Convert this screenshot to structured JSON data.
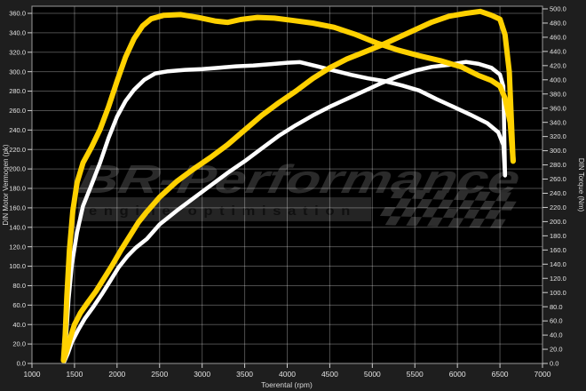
{
  "chart_data": {
    "type": "line",
    "title": "",
    "xlabel": "Toerental (rpm)",
    "ylabel_left": "DIN Motor Vermogen (pk)",
    "ylabel_right": "DIN Torque (Nm)",
    "x_axis": {
      "min": 1000,
      "max": 7000,
      "step": 500
    },
    "y_left_axis": {
      "min": 0,
      "max": 360,
      "step": 20,
      "decimals": 1
    },
    "y_right_axis": {
      "min": 0,
      "max": 500,
      "step": 20,
      "decimals": 1
    },
    "grid": true,
    "legend_position": "none",
    "colors": {
      "tuned": "#ffd100",
      "stock": "#ffffff",
      "plot_background": "#000000",
      "margin_background": "#1e1e1e",
      "gridline": "rgba(255,255,255,0.30)",
      "tick_text": "#e3e3e3",
      "watermark_text": "#2a2a2a",
      "watermark_band": "rgba(140,140,140,0.26)",
      "watermark_tagline": "#101010",
      "checker": "#2d2d2d"
    },
    "watermark": {
      "brand": "BR-Performance",
      "tagline": "engine optimisation"
    },
    "series": [
      {
        "name": "stock-torque",
        "axis": "right",
        "color": "#ffffff",
        "width": 4.5,
        "points": [
          [
            1380,
            4
          ],
          [
            1400,
            35
          ],
          [
            1430,
            90
          ],
          [
            1470,
            140
          ],
          [
            1530,
            185
          ],
          [
            1600,
            222
          ],
          [
            1700,
            252
          ],
          [
            1800,
            283
          ],
          [
            1900,
            318
          ],
          [
            2000,
            348
          ],
          [
            2100,
            370
          ],
          [
            2200,
            386
          ],
          [
            2320,
            400
          ],
          [
            2450,
            409
          ],
          [
            2600,
            412
          ],
          [
            2800,
            414
          ],
          [
            3000,
            415
          ],
          [
            3200,
            417
          ],
          [
            3400,
            419
          ],
          [
            3600,
            420
          ],
          [
            3800,
            422
          ],
          [
            4000,
            424
          ],
          [
            4150,
            425
          ],
          [
            4350,
            419
          ],
          [
            4550,
            413
          ],
          [
            4750,
            407
          ],
          [
            4950,
            402
          ],
          [
            5150,
            398
          ],
          [
            5350,
            392
          ],
          [
            5550,
            385
          ],
          [
            5750,
            373
          ],
          [
            5950,
            362
          ],
          [
            6150,
            351
          ],
          [
            6350,
            339
          ],
          [
            6480,
            326
          ],
          [
            6540,
            308
          ],
          [
            6560,
            265
          ]
        ]
      },
      {
        "name": "stock-power",
        "axis": "left",
        "color": "#ffffff",
        "width": 4.5,
        "points": [
          [
            1380,
            2
          ],
          [
            1420,
            10
          ],
          [
            1470,
            22
          ],
          [
            1540,
            34
          ],
          [
            1620,
            46
          ],
          [
            1720,
            58
          ],
          [
            1820,
            71
          ],
          [
            1920,
            85
          ],
          [
            2020,
            99
          ],
          [
            2120,
            110
          ],
          [
            2220,
            119
          ],
          [
            2350,
            128
          ],
          [
            2500,
            143
          ],
          [
            2700,
            157
          ],
          [
            2900,
            170
          ],
          [
            3100,
            183
          ],
          [
            3300,
            196
          ],
          [
            3500,
            208
          ],
          [
            3700,
            221
          ],
          [
            3900,
            234
          ],
          [
            4100,
            245
          ],
          [
            4300,
            255
          ],
          [
            4500,
            264
          ],
          [
            4700,
            272
          ],
          [
            4900,
            280
          ],
          [
            5100,
            288
          ],
          [
            5300,
            295
          ],
          [
            5500,
            301
          ],
          [
            5700,
            305
          ],
          [
            5900,
            307
          ],
          [
            6100,
            310
          ],
          [
            6250,
            308
          ],
          [
            6400,
            304
          ],
          [
            6500,
            297
          ],
          [
            6540,
            285
          ],
          [
            6560,
            194
          ]
        ]
      },
      {
        "name": "tuned-torque",
        "axis": "right",
        "color": "#ffd100",
        "width": 6,
        "points": [
          [
            1370,
            5
          ],
          [
            1390,
            40
          ],
          [
            1410,
            95
          ],
          [
            1440,
            160
          ],
          [
            1480,
            215
          ],
          [
            1530,
            255
          ],
          [
            1600,
            283
          ],
          [
            1700,
            305
          ],
          [
            1800,
            330
          ],
          [
            1900,
            362
          ],
          [
            2000,
            398
          ],
          [
            2100,
            432
          ],
          [
            2200,
            458
          ],
          [
            2300,
            476
          ],
          [
            2400,
            486
          ],
          [
            2550,
            491
          ],
          [
            2750,
            492
          ],
          [
            2950,
            488
          ],
          [
            3150,
            483
          ],
          [
            3300,
            481
          ],
          [
            3450,
            485
          ],
          [
            3650,
            488
          ],
          [
            3850,
            487
          ],
          [
            4050,
            484
          ],
          [
            4300,
            480
          ],
          [
            4550,
            474
          ],
          [
            4800,
            464
          ],
          [
            5050,
            452
          ],
          [
            5300,
            442
          ],
          [
            5550,
            434
          ],
          [
            5800,
            427
          ],
          [
            6050,
            418
          ],
          [
            6250,
            406
          ],
          [
            6400,
            399
          ],
          [
            6500,
            391
          ],
          [
            6560,
            374
          ],
          [
            6620,
            340
          ],
          [
            6655,
            286
          ]
        ]
      },
      {
        "name": "tuned-power",
        "axis": "left",
        "color": "#ffd100",
        "width": 6,
        "points": [
          [
            1370,
            3
          ],
          [
            1410,
            14
          ],
          [
            1450,
            26
          ],
          [
            1500,
            40
          ],
          [
            1570,
            52
          ],
          [
            1650,
            62
          ],
          [
            1750,
            74
          ],
          [
            1850,
            88
          ],
          [
            1950,
            102
          ],
          [
            2050,
            117
          ],
          [
            2150,
            131
          ],
          [
            2250,
            145
          ],
          [
            2350,
            156
          ],
          [
            2500,
            171
          ],
          [
            2700,
            187
          ],
          [
            2900,
            200
          ],
          [
            3100,
            212
          ],
          [
            3300,
            225
          ],
          [
            3500,
            240
          ],
          [
            3700,
            255
          ],
          [
            3900,
            268
          ],
          [
            4100,
            280
          ],
          [
            4300,
            293
          ],
          [
            4500,
            304
          ],
          [
            4700,
            313
          ],
          [
            4900,
            320
          ],
          [
            5100,
            327
          ],
          [
            5300,
            335
          ],
          [
            5500,
            343
          ],
          [
            5700,
            351
          ],
          [
            5900,
            357
          ],
          [
            6100,
            360
          ],
          [
            6270,
            362
          ],
          [
            6400,
            358
          ],
          [
            6500,
            354
          ],
          [
            6560,
            338
          ],
          [
            6610,
            300
          ],
          [
            6655,
            208
          ]
        ]
      }
    ],
    "peak_values": {
      "tuned_power_pk": 362,
      "tuned_torque_nm": 492,
      "stock_power_pk": 310,
      "stock_torque_nm": 425
    }
  }
}
